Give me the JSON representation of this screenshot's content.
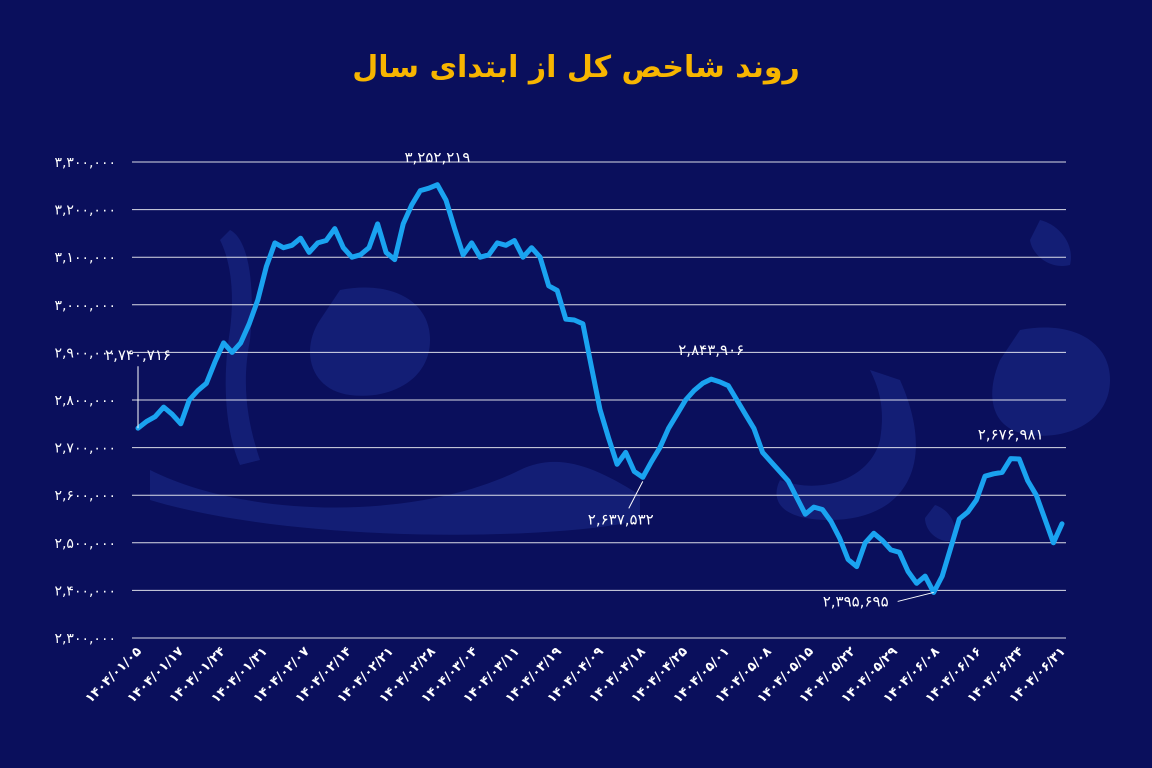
{
  "chart_data": {
    "type": "line",
    "title": "روند شاخص کل از ابتدای سال",
    "xlabel": "",
    "ylabel": "",
    "ylim": [
      2300000,
      3300000
    ],
    "y_ticks": [
      "۳,۳۰۰,۰۰۰",
      "۳,۲۰۰,۰۰۰",
      "۳,۱۰۰,۰۰۰",
      "۳,۰۰۰,۰۰۰",
      "۲,۹۰۰,۰۰۰",
      "۲,۸۰۰,۰۰۰",
      "۲,۷۰۰,۰۰۰",
      "۲,۶۰۰,۰۰۰",
      "۲,۵۰۰,۰۰۰",
      "۲,۴۰۰,۰۰۰",
      "۲,۳۰۰,۰۰۰"
    ],
    "x_ticks": [
      "۱۴۰۴/۰۱/۰۵",
      "۱۴۰۴/۰۱/۱۷",
      "۱۴۰۴/۰۱/۲۴",
      "۱۴۰۴/۰۱/۳۱",
      "۱۴۰۴/۰۲/۰۷",
      "۱۴۰۴/۰۲/۱۴",
      "۱۴۰۴/۰۲/۲۱",
      "۱۴۰۴/۰۲/۲۸",
      "۱۴۰۴/۰۳/۰۴",
      "۱۴۰۴/۰۳/۱۱",
      "۱۴۰۴/۰۳/۱۹",
      "۱۴۰۴/۰۴/۰۹",
      "۱۴۰۴/۰۴/۱۸",
      "۱۴۰۴/۰۴/۲۵",
      "۱۴۰۴/۰۵/۰۱",
      "۱۴۰۴/۰۵/۰۸",
      "۱۴۰۴/۰۵/۱۵",
      "۱۴۰۴/۰۵/۲۲",
      "۱۴۰۴/۰۵/۲۹",
      "۱۴۰۴/۰۶/۰۸",
      "۱۴۰۴/۰۶/۱۶",
      "۱۴۰۴/۰۶/۲۴",
      "۱۴۰۴/۰۶/۳۱"
    ],
    "grid": true,
    "series": [
      {
        "color": "#1aa3f0",
        "values": [
          2740716,
          2755000,
          2765000,
          2785000,
          2770000,
          2750000,
          2800000,
          2820000,
          2835000,
          2880000,
          2920000,
          2900000,
          2920000,
          2960000,
          3010000,
          3080000,
          3130000,
          3120000,
          3125000,
          3140000,
          3110000,
          3130000,
          3135000,
          3160000,
          3120000,
          3100000,
          3105000,
          3120000,
          3170000,
          3110000,
          3095000,
          3170000,
          3210000,
          3240000,
          3245000,
          3252219,
          3220000,
          3160000,
          3105000,
          3130000,
          3100000,
          3105000,
          3130000,
          3125000,
          3135000,
          3100000,
          3120000,
          3100000,
          3040000,
          3030000,
          2970000,
          2968000,
          2960000,
          2870000,
          2780000,
          2720000,
          2665000,
          2690000,
          2650000,
          2637532,
          2670000,
          2700000,
          2740000,
          2770000,
          2800000,
          2820000,
          2835000,
          2843906,
          2838000,
          2830000,
          2800000,
          2770000,
          2740000,
          2690000,
          2670000,
          2650000,
          2630000,
          2595000,
          2560000,
          2575000,
          2570000,
          2545000,
          2510000,
          2465000,
          2450000,
          2500000,
          2520000,
          2505000,
          2485000,
          2480000,
          2440000,
          2415000,
          2430000,
          2395695,
          2430000,
          2490000,
          2550000,
          2565000,
          2590000,
          2640000,
          2645000,
          2648000,
          2676981,
          2676000,
          2630000,
          2600000,
          2550000,
          2500000,
          2540000
        ]
      }
    ],
    "annotations": [
      {
        "label": "۲,۷۴۰,۷۱۶",
        "index": 0,
        "value": 2740716
      },
      {
        "label": "۳,۲۵۲,۲۱۹",
        "index": 35,
        "value": 3252219
      },
      {
        "label": "۲,۶۳۷,۵۳۲",
        "index": 59,
        "value": 2637532
      },
      {
        "label": "۲,۸۴۳,۹۰۶",
        "index": 67,
        "value": 2843906
      },
      {
        "label": "۲,۳۹۵,۶۹۵",
        "index": 93,
        "value": 2395695
      },
      {
        "label": "۲,۶۷۶,۹۸۱",
        "index": 102,
        "value": 2676981
      }
    ]
  }
}
